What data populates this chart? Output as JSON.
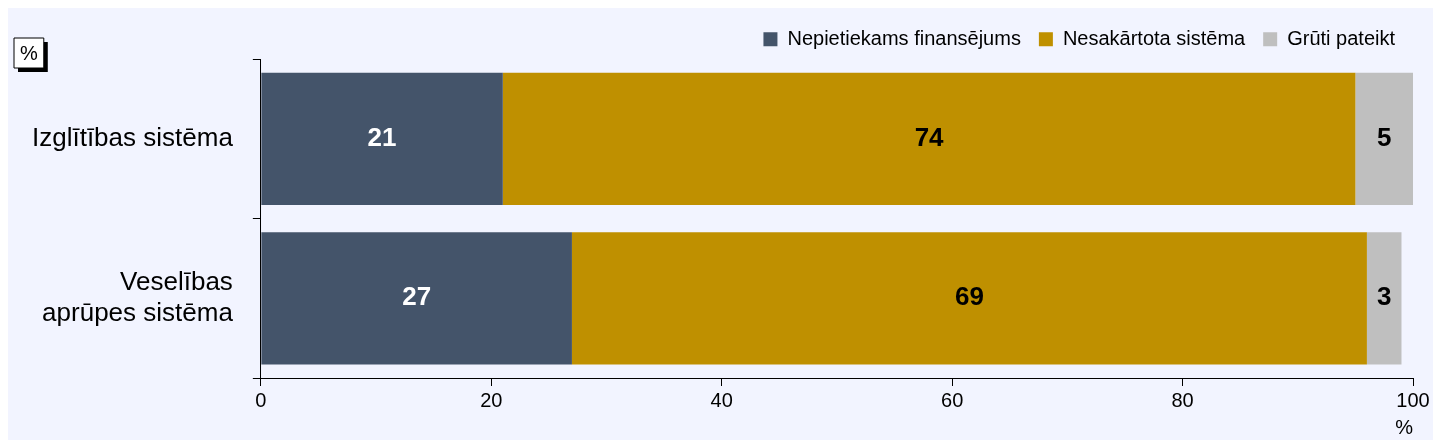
{
  "chart_data": {
    "type": "bar",
    "orientation": "horizontal",
    "stacked": true,
    "categories": [
      "Izglītības sistēma",
      "Veselības aprūpes sistēma"
    ],
    "series": [
      {
        "name": "Nepietiekams finansējums",
        "color": "#44546a",
        "values": [
          21,
          27
        ]
      },
      {
        "name": "Nesakārtota sistēma",
        "color": "#bf9000",
        "values": [
          74,
          69
        ]
      },
      {
        "name": "Grūti pateikt",
        "color": "#bfbfbf",
        "values": [
          5,
          3
        ]
      }
    ],
    "xlim": [
      0,
      100
    ],
    "xticks": [
      0,
      20,
      40,
      60,
      80,
      100
    ],
    "xlabel": "%",
    "annotations": [
      "%"
    ],
    "data_labels": true,
    "legend": "top"
  }
}
